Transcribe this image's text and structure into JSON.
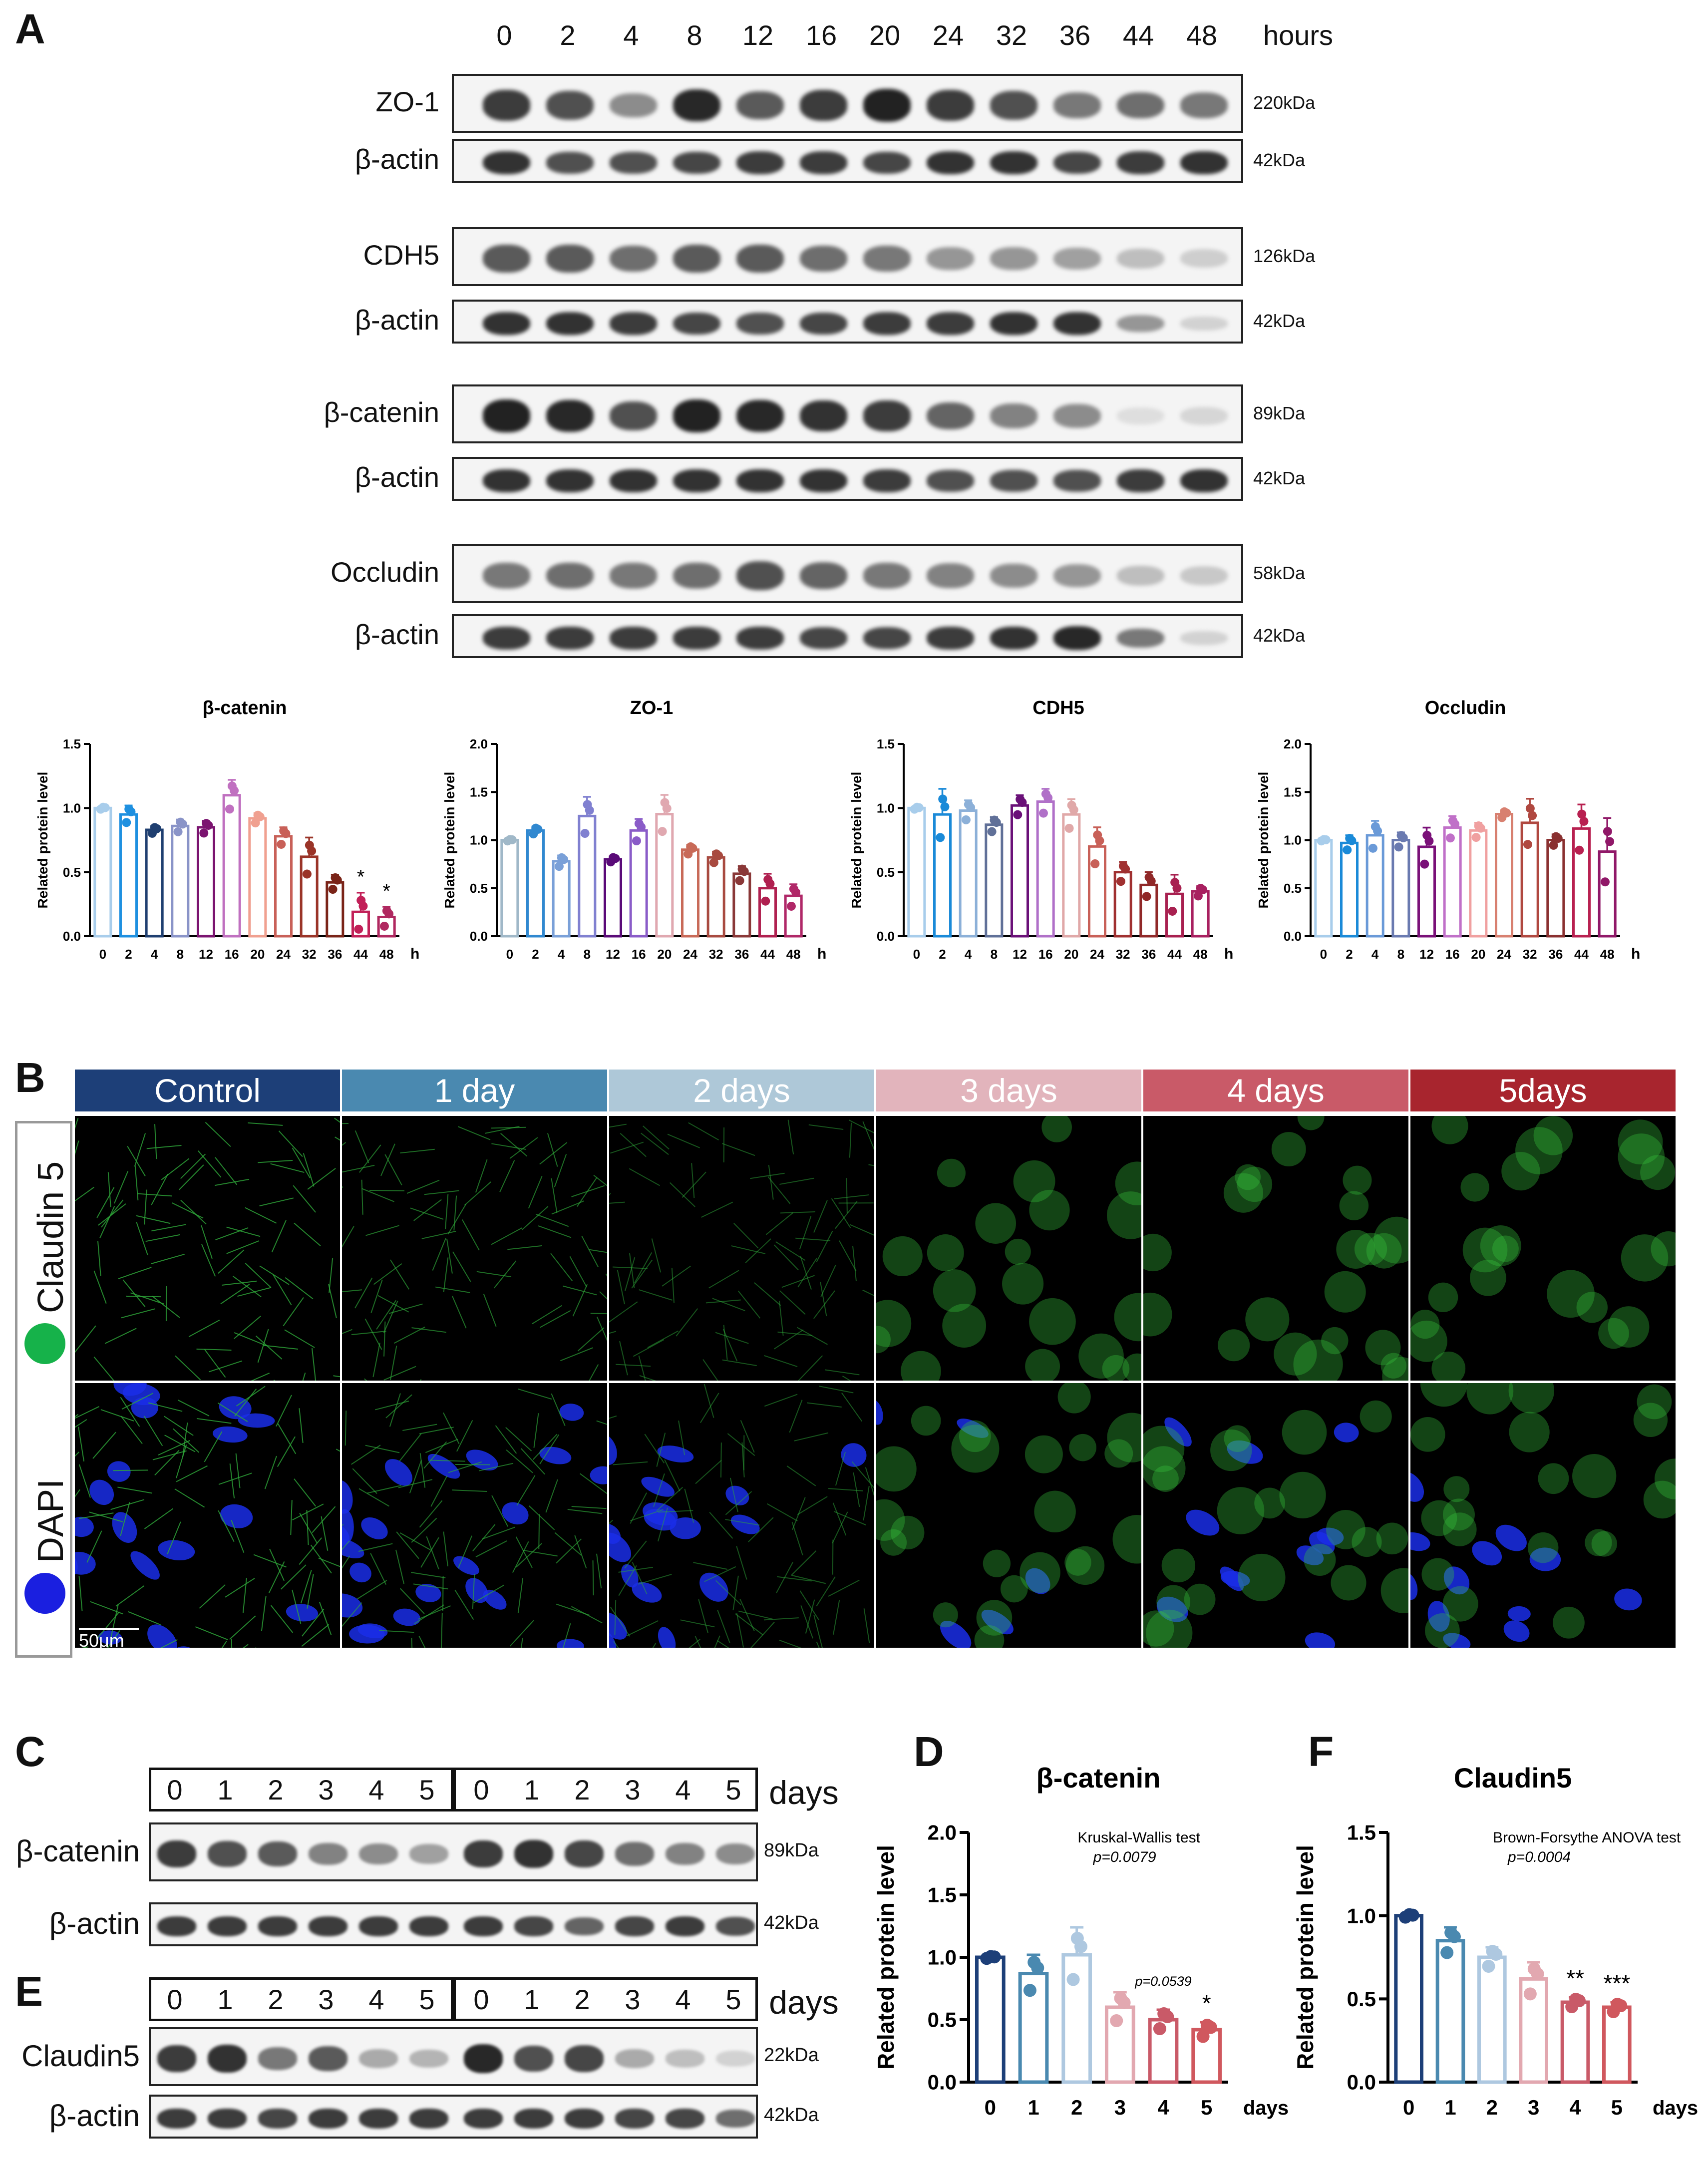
{
  "panels": {
    "A": "A",
    "B": "B",
    "C": "C",
    "D": "D",
    "E": "E",
    "F": "F"
  },
  "panelA": {
    "lanes": [
      "0",
      "2",
      "4",
      "8",
      "12",
      "16",
      "20",
      "24",
      "32",
      "36",
      "44",
      "48"
    ],
    "unit": "hours",
    "blots": [
      {
        "label": "ZO-1",
        "kda": "220kDa",
        "intensity": [
          0.85,
          0.75,
          0.45,
          0.95,
          0.7,
          0.85,
          0.98,
          0.85,
          0.75,
          0.55,
          0.6,
          0.55
        ]
      },
      {
        "label": "β-actin",
        "kda": "42kDa",
        "intensity": [
          0.9,
          0.75,
          0.75,
          0.8,
          0.85,
          0.85,
          0.8,
          0.9,
          0.9,
          0.8,
          0.85,
          0.9
        ]
      },
      {
        "label": "CDH5",
        "kda": "126kDa",
        "intensity": [
          0.7,
          0.7,
          0.6,
          0.7,
          0.7,
          0.6,
          0.55,
          0.4,
          0.4,
          0.35,
          0.2,
          0.12
        ]
      },
      {
        "label": "β-actin",
        "kda": "42kDa",
        "intensity": [
          0.9,
          0.9,
          0.85,
          0.8,
          0.75,
          0.8,
          0.85,
          0.85,
          0.9,
          0.9,
          0.4,
          0.1
        ]
      },
      {
        "label": "β-catenin",
        "kda": "89kDa",
        "intensity": [
          0.98,
          0.95,
          0.75,
          0.98,
          0.95,
          0.9,
          0.85,
          0.65,
          0.5,
          0.45,
          0.04,
          0.08
        ]
      },
      {
        "label": "β-actin",
        "kda": "42kDa",
        "intensity": [
          0.9,
          0.9,
          0.9,
          0.9,
          0.9,
          0.9,
          0.85,
          0.75,
          0.75,
          0.75,
          0.85,
          0.9
        ]
      },
      {
        "label": "Occludin",
        "kda": "58kDa",
        "intensity": [
          0.55,
          0.6,
          0.55,
          0.6,
          0.75,
          0.65,
          0.55,
          0.5,
          0.45,
          0.4,
          0.2,
          0.15
        ]
      },
      {
        "label": "β-actin",
        "kda": "42kDa",
        "intensity": [
          0.85,
          0.85,
          0.85,
          0.85,
          0.85,
          0.8,
          0.8,
          0.85,
          0.9,
          0.95,
          0.55,
          0.1
        ]
      }
    ]
  },
  "microscopy": {
    "columns": [
      "Control",
      "1 day",
      "2 days",
      "3 days",
      "4 days",
      "5days"
    ],
    "column_colors": [
      "#1d3f78",
      "#4a89b0",
      "#aec8d8",
      "#e2b4bc",
      "#c95a68",
      "#a8252e"
    ],
    "rows": [
      "Claudin 5",
      "DAPI"
    ],
    "row_dot_colors": [
      "#16b24a",
      "#1a1fe0"
    ],
    "scalebar": "50μm"
  },
  "panelC": {
    "lanes": [
      "0",
      "1",
      "2",
      "3",
      "4",
      "5",
      "0",
      "1",
      "2",
      "3",
      "4",
      "5"
    ],
    "unit": "days",
    "blots": [
      {
        "label": "β-catenin",
        "kda": "89kDa",
        "intensity": [
          0.85,
          0.75,
          0.7,
          0.5,
          0.45,
          0.35,
          0.85,
          0.9,
          0.8,
          0.6,
          0.5,
          0.45
        ]
      },
      {
        "label": "β-actin",
        "kda": "42kDa",
        "intensity": [
          0.85,
          0.85,
          0.85,
          0.85,
          0.85,
          0.85,
          0.85,
          0.8,
          0.65,
          0.8,
          0.85,
          0.75
        ]
      }
    ]
  },
  "panelE": {
    "lanes": [
      "0",
      "1",
      "2",
      "3",
      "4",
      "5",
      "0",
      "1",
      "2",
      "3",
      "4",
      "5"
    ],
    "unit": "days",
    "blots": [
      {
        "label": "Claudin5",
        "kda": "22kDa",
        "intensity": [
          0.85,
          0.9,
          0.55,
          0.7,
          0.3,
          0.25,
          0.95,
          0.75,
          0.8,
          0.3,
          0.2,
          0.1
        ]
      },
      {
        "label": "β-actin",
        "kda": "42kDa",
        "intensity": [
          0.85,
          0.85,
          0.8,
          0.85,
          0.85,
          0.85,
          0.85,
          0.85,
          0.85,
          0.8,
          0.8,
          0.6
        ]
      }
    ]
  },
  "chart_data": [
    {
      "type": "bar",
      "title": "β-catenin",
      "ylabel": "Related protein level",
      "xlabel": "h",
      "categories": [
        "0",
        "2",
        "4",
        "8",
        "12",
        "16",
        "20",
        "24",
        "32",
        "36",
        "44",
        "48"
      ],
      "values": [
        1.0,
        0.95,
        0.83,
        0.86,
        0.85,
        1.1,
        0.92,
        0.78,
        0.62,
        0.42,
        0.19,
        0.15
      ],
      "errors": [
        0.01,
        0.07,
        0.03,
        0.05,
        0.05,
        0.12,
        0.04,
        0.07,
        0.15,
        0.06,
        0.15,
        0.08
      ],
      "stars": [
        "",
        "",
        "",
        "",
        "",
        "",
        "",
        "",
        "",
        "",
        "*",
        "*"
      ],
      "ylim": [
        0,
        1.5
      ],
      "yticks": [
        "0.0",
        "0.5",
        "1.0",
        "1.5"
      ],
      "colors": [
        "#a8cdeb",
        "#1e90e0",
        "#1f3f70",
        "#8a94c8",
        "#7b1470",
        "#c070c0",
        "#f0a090",
        "#c86058",
        "#9a3428",
        "#7a2418",
        "#c22058",
        "#b02860"
      ]
    },
    {
      "type": "bar",
      "title": "ZO-1",
      "ylabel": "Related protein level",
      "xlabel": "h",
      "categories": [
        "0",
        "2",
        "4",
        "8",
        "12",
        "16",
        "20",
        "24",
        "32",
        "36",
        "44",
        "48"
      ],
      "values": [
        1.0,
        1.1,
        0.78,
        1.25,
        0.8,
        1.1,
        1.27,
        0.9,
        0.82,
        0.65,
        0.5,
        0.42
      ],
      "errors": [
        0.01,
        0.04,
        0.06,
        0.2,
        0.03,
        0.12,
        0.2,
        0.05,
        0.06,
        0.08,
        0.15,
        0.12
      ],
      "stars": [
        "",
        "",
        "",
        "",
        "",
        "",
        "",
        "",
        "",
        "",
        "",
        ""
      ],
      "ylim": [
        0,
        2.0
      ],
      "yticks": [
        "0.0",
        "0.5",
        "1.0",
        "1.5",
        "2.0"
      ],
      "colors": [
        "#a0b8c8",
        "#3088d0",
        "#7aa0d8",
        "#8080d0",
        "#5a0a78",
        "#8a5cc8",
        "#e0a8b0",
        "#c86a58",
        "#a84a40",
        "#8a3838",
        "#b02050",
        "#b02868"
      ]
    },
    {
      "type": "bar",
      "title": "CDH5",
      "ylabel": "Related protein level",
      "xlabel": "h",
      "categories": [
        "0",
        "2",
        "4",
        "8",
        "12",
        "16",
        "20",
        "24",
        "32",
        "36",
        "44",
        "48"
      ],
      "values": [
        1.0,
        0.95,
        0.98,
        0.87,
        1.02,
        1.05,
        0.95,
        0.7,
        0.5,
        0.4,
        0.33,
        0.35
      ],
      "errors": [
        0.01,
        0.2,
        0.08,
        0.06,
        0.08,
        0.1,
        0.12,
        0.15,
        0.08,
        0.1,
        0.15,
        0.04
      ],
      "stars": [
        "",
        "",
        "",
        "",
        "",
        "",
        "",
        "",
        "",
        "",
        "",
        ""
      ],
      "ylim": [
        0,
        1.5
      ],
      "yticks": [
        "0.0",
        "0.5",
        "1.0",
        "1.5"
      ],
      "colors": [
        "#a8cdeb",
        "#1a8ad8",
        "#8cb0d8",
        "#607098",
        "#6a1078",
        "#b070c8",
        "#e0a8a8",
        "#c86058",
        "#a03030",
        "#902828",
        "#a82050",
        "#a82060"
      ]
    },
    {
      "type": "bar",
      "title": "Occludin",
      "ylabel": "Related protein level",
      "xlabel": "h",
      "categories": [
        "0",
        "2",
        "4",
        "8",
        "12",
        "16",
        "20",
        "24",
        "32",
        "36",
        "44",
        "48"
      ],
      "values": [
        1.0,
        0.97,
        1.05,
        1.0,
        0.93,
        1.13,
        1.1,
        1.27,
        1.18,
        1.0,
        1.12,
        0.88
      ],
      "errors": [
        0.01,
        0.08,
        0.15,
        0.08,
        0.2,
        0.12,
        0.08,
        0.04,
        0.25,
        0.06,
        0.25,
        0.35
      ],
      "stars": [
        "",
        "",
        "",
        "",
        "",
        "",
        "",
        "",
        "",
        "",
        "",
        ""
      ],
      "ylim": [
        0,
        2.0
      ],
      "yticks": [
        "0.0",
        "0.5",
        "1.0",
        "1.5",
        "2.0"
      ],
      "colors": [
        "#a8cdeb",
        "#1a8ad8",
        "#6a9ad8",
        "#6a7ab0",
        "#7a1078",
        "#c070c8",
        "#f0a0a0",
        "#d88070",
        "#b04840",
        "#8a3030",
        "#b82050",
        "#901868"
      ]
    },
    {
      "type": "bar",
      "title": "β-catenin",
      "ylabel": "Related protein level",
      "xlabel": "days",
      "categories": [
        "0",
        "1",
        "2",
        "3",
        "4",
        "5"
      ],
      "values": [
        1.0,
        0.87,
        1.02,
        0.6,
        0.5,
        0.42
      ],
      "errors": [
        0.01,
        0.15,
        0.22,
        0.12,
        0.08,
        0.06
      ],
      "stars": [
        "",
        "",
        "",
        "",
        "",
        "*"
      ],
      "annotation": "p=0.0539",
      "test": "Kruskal-Wallis test",
      "pvalue": "p=0.0079",
      "ylim": [
        0,
        2.0
      ],
      "yticks": [
        "0.0",
        "0.5",
        "1.0",
        "1.5",
        "2.0"
      ],
      "colors": [
        "#1d3f78",
        "#4a89b0",
        "#aec8e0",
        "#e2a8b0",
        "#c95a68",
        "#d0585e"
      ]
    },
    {
      "type": "bar",
      "title": "Claudin5",
      "ylabel": "Related protein level",
      "xlabel": "days",
      "categories": [
        "0",
        "1",
        "2",
        "3",
        "4",
        "5"
      ],
      "values": [
        1.0,
        0.85,
        0.75,
        0.62,
        0.48,
        0.45
      ],
      "errors": [
        0.01,
        0.08,
        0.06,
        0.1,
        0.03,
        0.03
      ],
      "stars": [
        "",
        "",
        "",
        "",
        "**",
        "***"
      ],
      "test": "Brown-Forsythe ANOVA test",
      "pvalue": "p=0.0004",
      "ylim": [
        0,
        1.5
      ],
      "yticks": [
        "0.0",
        "0.5",
        "1.0",
        "1.5"
      ],
      "colors": [
        "#1d3f78",
        "#4a89b0",
        "#aec8e0",
        "#e2a8b0",
        "#c95a68",
        "#d0585e"
      ]
    }
  ]
}
